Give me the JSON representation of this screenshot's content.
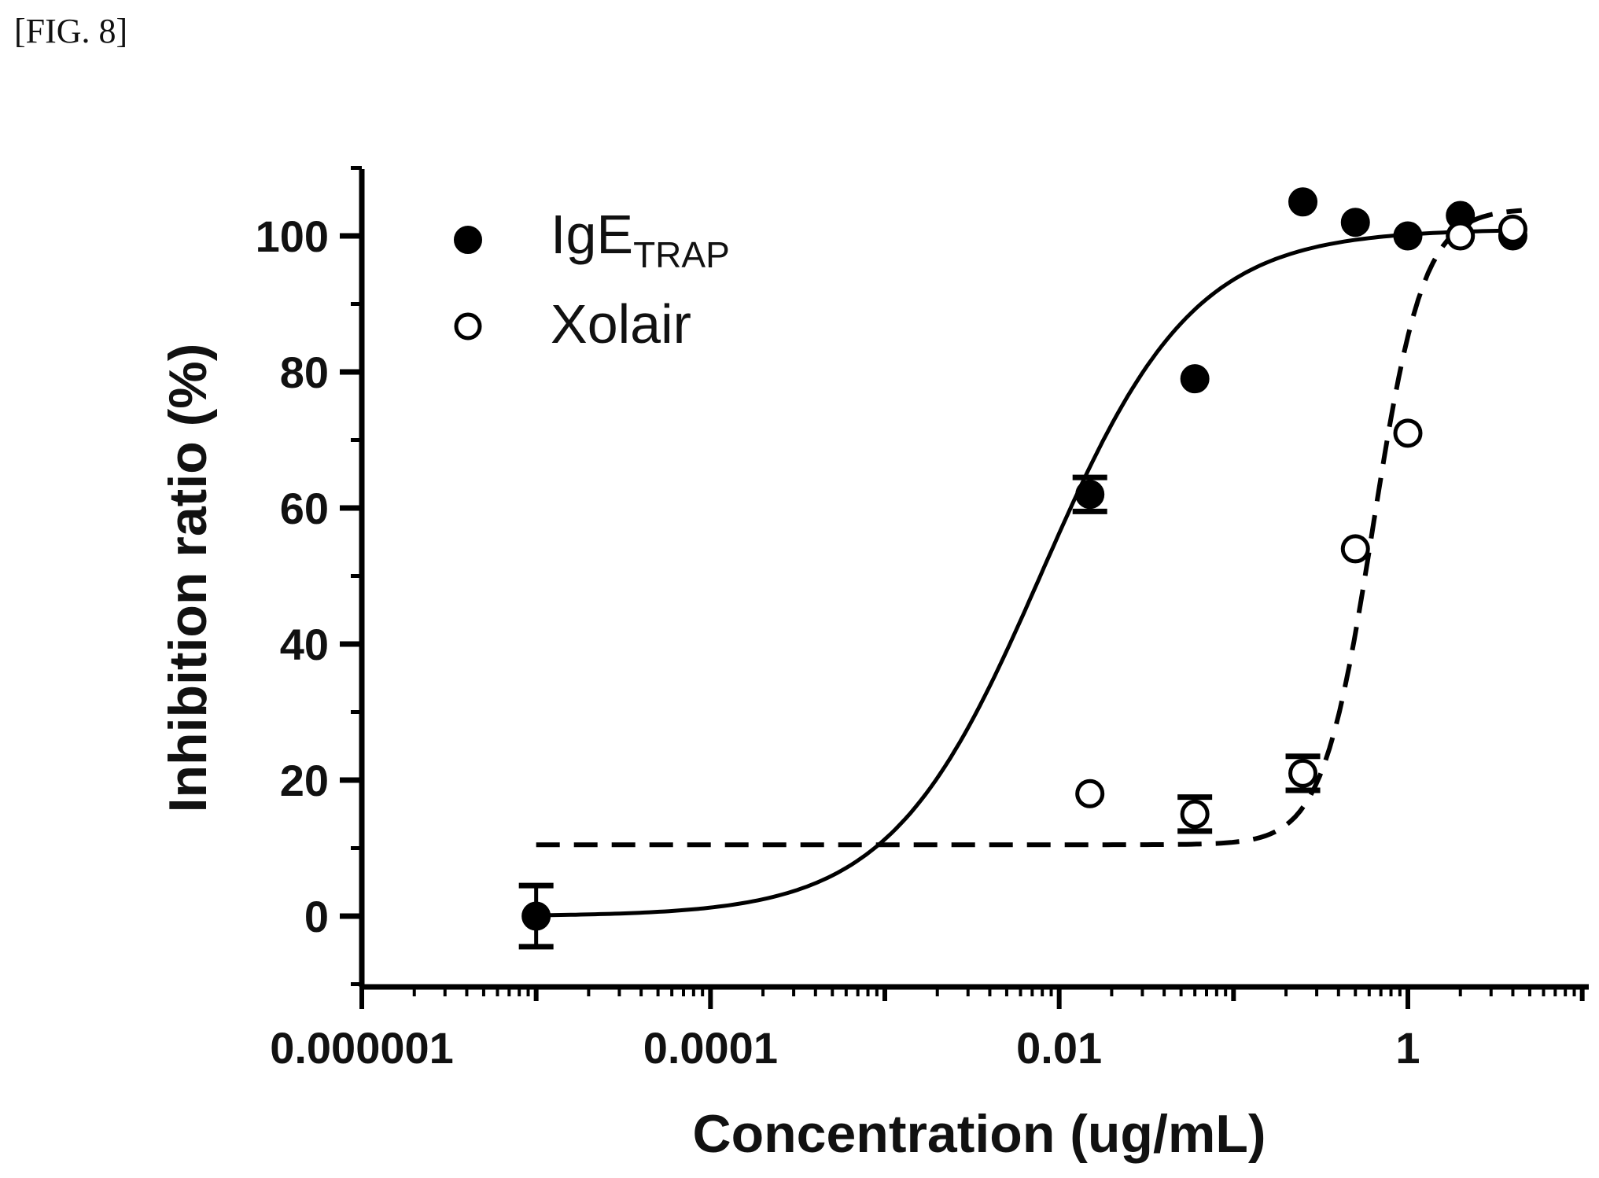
{
  "figure_label": "[FIG. 8]",
  "chart_data": {
    "type": "scatter",
    "title": "",
    "xlabel": "Concentration (ug/mL)",
    "ylabel": "Inhibition ratio (%)",
    "x_scale": "log",
    "xlim": [
      1e-06,
      10
    ],
    "ylim": [
      -10,
      110
    ],
    "x_ticks": [
      1e-06,
      0.0001,
      0.01,
      1
    ],
    "x_tick_labels": [
      "0.000001",
      "0.0001",
      "0.01",
      "1"
    ],
    "y_ticks": [
      0,
      20,
      40,
      60,
      80,
      100
    ],
    "y_tick_labels": [
      "0",
      "20",
      "40",
      "60",
      "80",
      "100"
    ],
    "legend_position": "top-left",
    "grid": false,
    "series": [
      {
        "name_main": "IgE",
        "name_sub": "TRAP",
        "marker": "filled-circle",
        "line_style": "solid",
        "color": "#000000",
        "points": [
          {
            "x": 1e-05,
            "y": 0,
            "err": 4.5
          },
          {
            "x": 0.015,
            "y": 62,
            "err": 2.5
          },
          {
            "x": 0.06,
            "y": 79,
            "err": 0
          },
          {
            "x": 0.25,
            "y": 105,
            "err": 0
          },
          {
            "x": 0.5,
            "y": 102,
            "err": 0
          },
          {
            "x": 1,
            "y": 100,
            "err": 0
          },
          {
            "x": 2,
            "y": 103,
            "err": 0
          },
          {
            "x": 4,
            "y": 100,
            "err": 0
          }
        ],
        "fit": {
          "bottom": 0,
          "top": 101,
          "log_ec50": -2.1,
          "hill": 1.0
        }
      },
      {
        "name_main": "Xolair",
        "name_sub": "",
        "marker": "open-circle",
        "line_style": "dashed",
        "color": "#000000",
        "points": [
          {
            "x": 0.015,
            "y": 18,
            "err": 0
          },
          {
            "x": 0.06,
            "y": 15,
            "err": 2.5
          },
          {
            "x": 0.25,
            "y": 21,
            "err": 2.5
          },
          {
            "x": 0.5,
            "y": 54,
            "err": 0
          },
          {
            "x": 1,
            "y": 71,
            "err": 0
          },
          {
            "x": 2,
            "y": 100,
            "err": 0
          },
          {
            "x": 4,
            "y": 101,
            "err": 0
          }
        ],
        "fit": {
          "bottom": 10.5,
          "top": 104,
          "log_ec50": -0.2,
          "hill": 3.0
        }
      }
    ]
  }
}
